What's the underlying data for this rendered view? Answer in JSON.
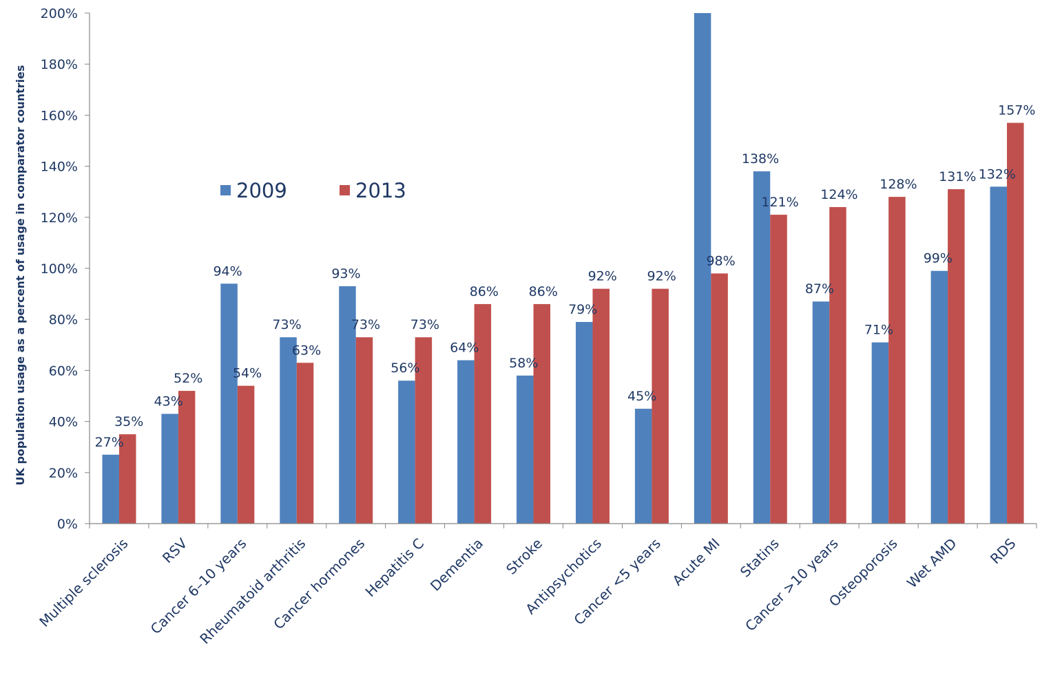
{
  "chart_data": {
    "type": "bar",
    "title": "",
    "xlabel": "",
    "ylabel": "UK population usage as a percent of usage in comparator countries",
    "ylim": [
      0,
      200
    ],
    "yticks": [
      0,
      20,
      40,
      60,
      80,
      100,
      120,
      140,
      160,
      180,
      200
    ],
    "ytick_suffix": "%",
    "grid": false,
    "legend_position": "upper-left-inside",
    "categories": [
      "Multiple sclerosis",
      "RSV",
      "Cancer 6–10 years",
      "Rheumatoid arthritis",
      "Cancer hormones",
      "Hepatitis C",
      "Dementia",
      "Stroke",
      "Antipsychotics",
      "Cancer <5 years",
      "Acute MI",
      "Statins",
      "Cancer >10 years",
      "Osteoporosis",
      "Wet AMD",
      "RDS"
    ],
    "series": [
      {
        "name": "2009",
        "color": "#4f81bd",
        "values": [
          27,
          43,
          94,
          73,
          93,
          56,
          64,
          58,
          79,
          45,
          200,
          138,
          87,
          71,
          99,
          132
        ],
        "labels": [
          "27%",
          "43%",
          "94%",
          "73%",
          "93%",
          "56%",
          "64%",
          "58%",
          "79%",
          "45%",
          "",
          "138%",
          "87%",
          "71%",
          "99%",
          "132%"
        ]
      },
      {
        "name": "2013",
        "color": "#c0504d",
        "values": [
          35,
          52,
          54,
          63,
          73,
          73,
          86,
          86,
          92,
          92,
          98,
          121,
          124,
          128,
          131,
          157
        ],
        "labels": [
          "35%",
          "52%",
          "54%",
          "63%",
          "73%",
          "73%",
          "86%",
          "86%",
          "92%",
          "92%",
          "98%",
          "121%",
          "124%",
          "128%",
          "131%",
          "157%"
        ]
      }
    ]
  }
}
